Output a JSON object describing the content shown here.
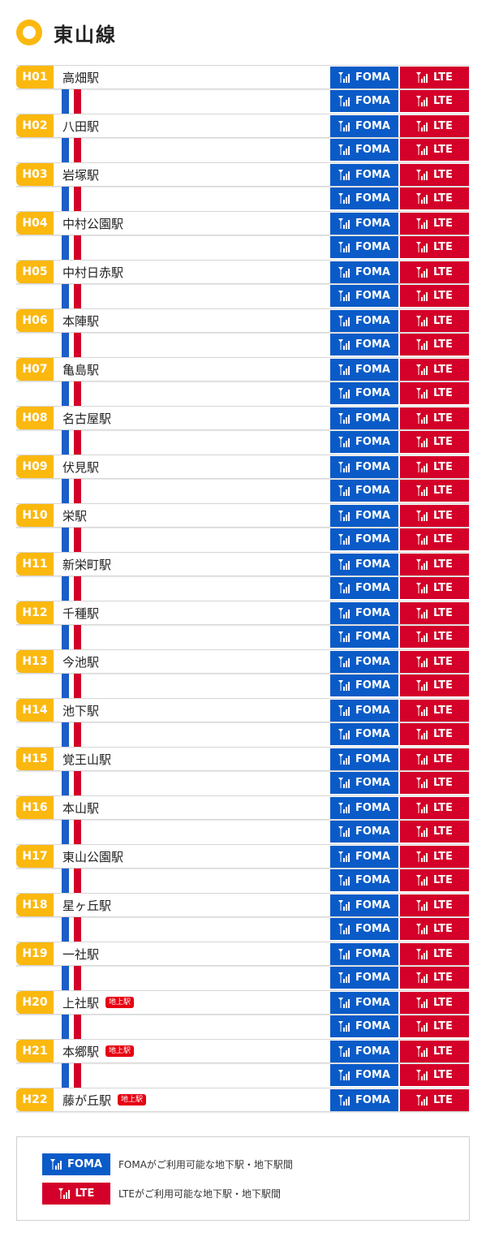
{
  "header": {
    "title": "東山線"
  },
  "badges": {
    "foma": "FOMA",
    "lte": "LTE"
  },
  "stations": [
    {
      "code": "H01",
      "name": "高畑駅",
      "above_ground": ""
    },
    {
      "code": "H02",
      "name": "八田駅",
      "above_ground": ""
    },
    {
      "code": "H03",
      "name": "岩塚駅",
      "above_ground": ""
    },
    {
      "code": "H04",
      "name": "中村公園駅",
      "above_ground": ""
    },
    {
      "code": "H05",
      "name": "中村日赤駅",
      "above_ground": ""
    },
    {
      "code": "H06",
      "name": "本陣駅",
      "above_ground": ""
    },
    {
      "code": "H07",
      "name": "亀島駅",
      "above_ground": ""
    },
    {
      "code": "H08",
      "name": "名古屋駅",
      "above_ground": ""
    },
    {
      "code": "H09",
      "name": "伏見駅",
      "above_ground": ""
    },
    {
      "code": "H10",
      "name": "栄駅",
      "above_ground": ""
    },
    {
      "code": "H11",
      "name": "新栄町駅",
      "above_ground": ""
    },
    {
      "code": "H12",
      "name": "千種駅",
      "above_ground": ""
    },
    {
      "code": "H13",
      "name": "今池駅",
      "above_ground": ""
    },
    {
      "code": "H14",
      "name": "池下駅",
      "above_ground": ""
    },
    {
      "code": "H15",
      "name": "覚王山駅",
      "above_ground": ""
    },
    {
      "code": "H16",
      "name": "本山駅",
      "above_ground": ""
    },
    {
      "code": "H17",
      "name": "東山公園駅",
      "above_ground": ""
    },
    {
      "code": "H18",
      "name": "星ヶ丘駅",
      "above_ground": ""
    },
    {
      "code": "H19",
      "name": "一社駅",
      "above_ground": ""
    },
    {
      "code": "H20",
      "name": "上社駅",
      "above_ground": "地上駅"
    },
    {
      "code": "H21",
      "name": "本郷駅",
      "above_ground": "地上駅"
    },
    {
      "code": "H22",
      "name": "藤が丘駅",
      "above_ground": "地上駅"
    }
  ],
  "legend": {
    "foma_label": "FOMA",
    "foma_text": "FOMAがご利用可能な地下駅・地下駅間",
    "lte_label": "LTE",
    "lte_text": "LTEがご利用可能な地下駅・地下駅間"
  },
  "colors": {
    "line": "#fbb80f",
    "foma": "#0a5bc8",
    "lte": "#d40029",
    "track_blue": "#1b5ec8",
    "track_red": "#d40029"
  }
}
